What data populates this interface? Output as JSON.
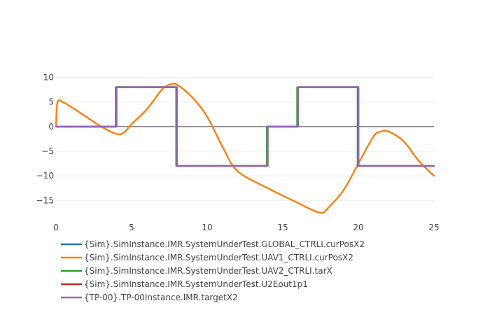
{
  "chart_data": {
    "type": "line",
    "xlim": [
      0,
      25
    ],
    "ylim": [
      -19.5,
      11.5
    ],
    "xticks": [
      0,
      5,
      10,
      15,
      20,
      25
    ],
    "yticks": [
      10,
      5,
      0,
      -5,
      -10,
      -15
    ],
    "xtick_labels": [
      "0",
      "5",
      "10",
      "15",
      "20",
      "25"
    ],
    "ytick_labels": [
      "10",
      "5",
      "0",
      "−5",
      "−10",
      "−15"
    ],
    "grid": true,
    "zero_line": true,
    "legend_position": "bottom-left",
    "series": [
      {
        "name": "{Sim}.SimInstance.IMR.SystemUnderTest.GLOBAL_CTRLI.curPosX2",
        "color": "#1f77b4",
        "x": [
          0,
          0.05,
          0.05,
          4,
          4,
          8,
          8,
          14,
          14,
          16,
          16,
          20,
          20,
          25
        ],
        "y": [
          0,
          0,
          0,
          0,
          8,
          8,
          -8,
          -8,
          0,
          0,
          8,
          8,
          -8,
          -8
        ]
      },
      {
        "name": "{Sim}.SimInstance.IMR.SystemUnderTest.UAV1_CTRLI.curPosX2",
        "color": "#ff7f0e",
        "x": [
          0,
          0.1,
          0.5,
          1,
          2,
          3,
          4,
          4.5,
          5,
          6,
          7,
          7.5,
          8,
          9,
          10,
          11,
          12,
          14,
          16,
          17,
          17.6,
          18,
          19,
          20,
          21,
          21.5,
          22,
          23,
          24,
          25
        ],
        "y": [
          0,
          5,
          4.9,
          4,
          2,
          0,
          -1.5,
          -1.2,
          0.5,
          3.5,
          7.5,
          8.5,
          8.5,
          6,
          2,
          -4,
          -9,
          -12.5,
          -15.5,
          -17,
          -17.5,
          -16.5,
          -13,
          -7.5,
          -2,
          -1,
          -1,
          -3,
          -7,
          -10
        ]
      },
      {
        "name": "{Sim}.SimInstance.IMR.SystemUnderTest.UAV2_CTRLI.tarX",
        "color": "#2ca02c",
        "x": [
          0,
          3.95,
          3.95,
          7.95,
          7.95,
          13.95,
          13.95,
          15.95,
          15.95,
          19.95,
          19.95,
          25
        ],
        "y": [
          0,
          0,
          8,
          8,
          -8,
          -8,
          0,
          0,
          8,
          8,
          -8,
          -8
        ]
      },
      {
        "name": "{Sim}.SimInstance.IMR.SystemUnderTest.U2Eout1p1",
        "color": "#d62728",
        "x": [
          0,
          4,
          4,
          8,
          8,
          14,
          14,
          16,
          16,
          20,
          20,
          25
        ],
        "y": [
          0,
          0,
          8,
          8,
          -8,
          -8,
          0,
          0,
          8,
          8,
          -8,
          -8
        ]
      },
      {
        "name": "{TP-00}.TP-00Instance.IMR.targetX2",
        "color": "#9467bd",
        "x": [
          0,
          4,
          4,
          8,
          8,
          14,
          14,
          16,
          16,
          20,
          20,
          25
        ],
        "y": [
          0,
          0,
          8,
          8,
          -8,
          -8,
          0,
          0,
          8,
          8,
          -8,
          -8
        ]
      }
    ]
  }
}
